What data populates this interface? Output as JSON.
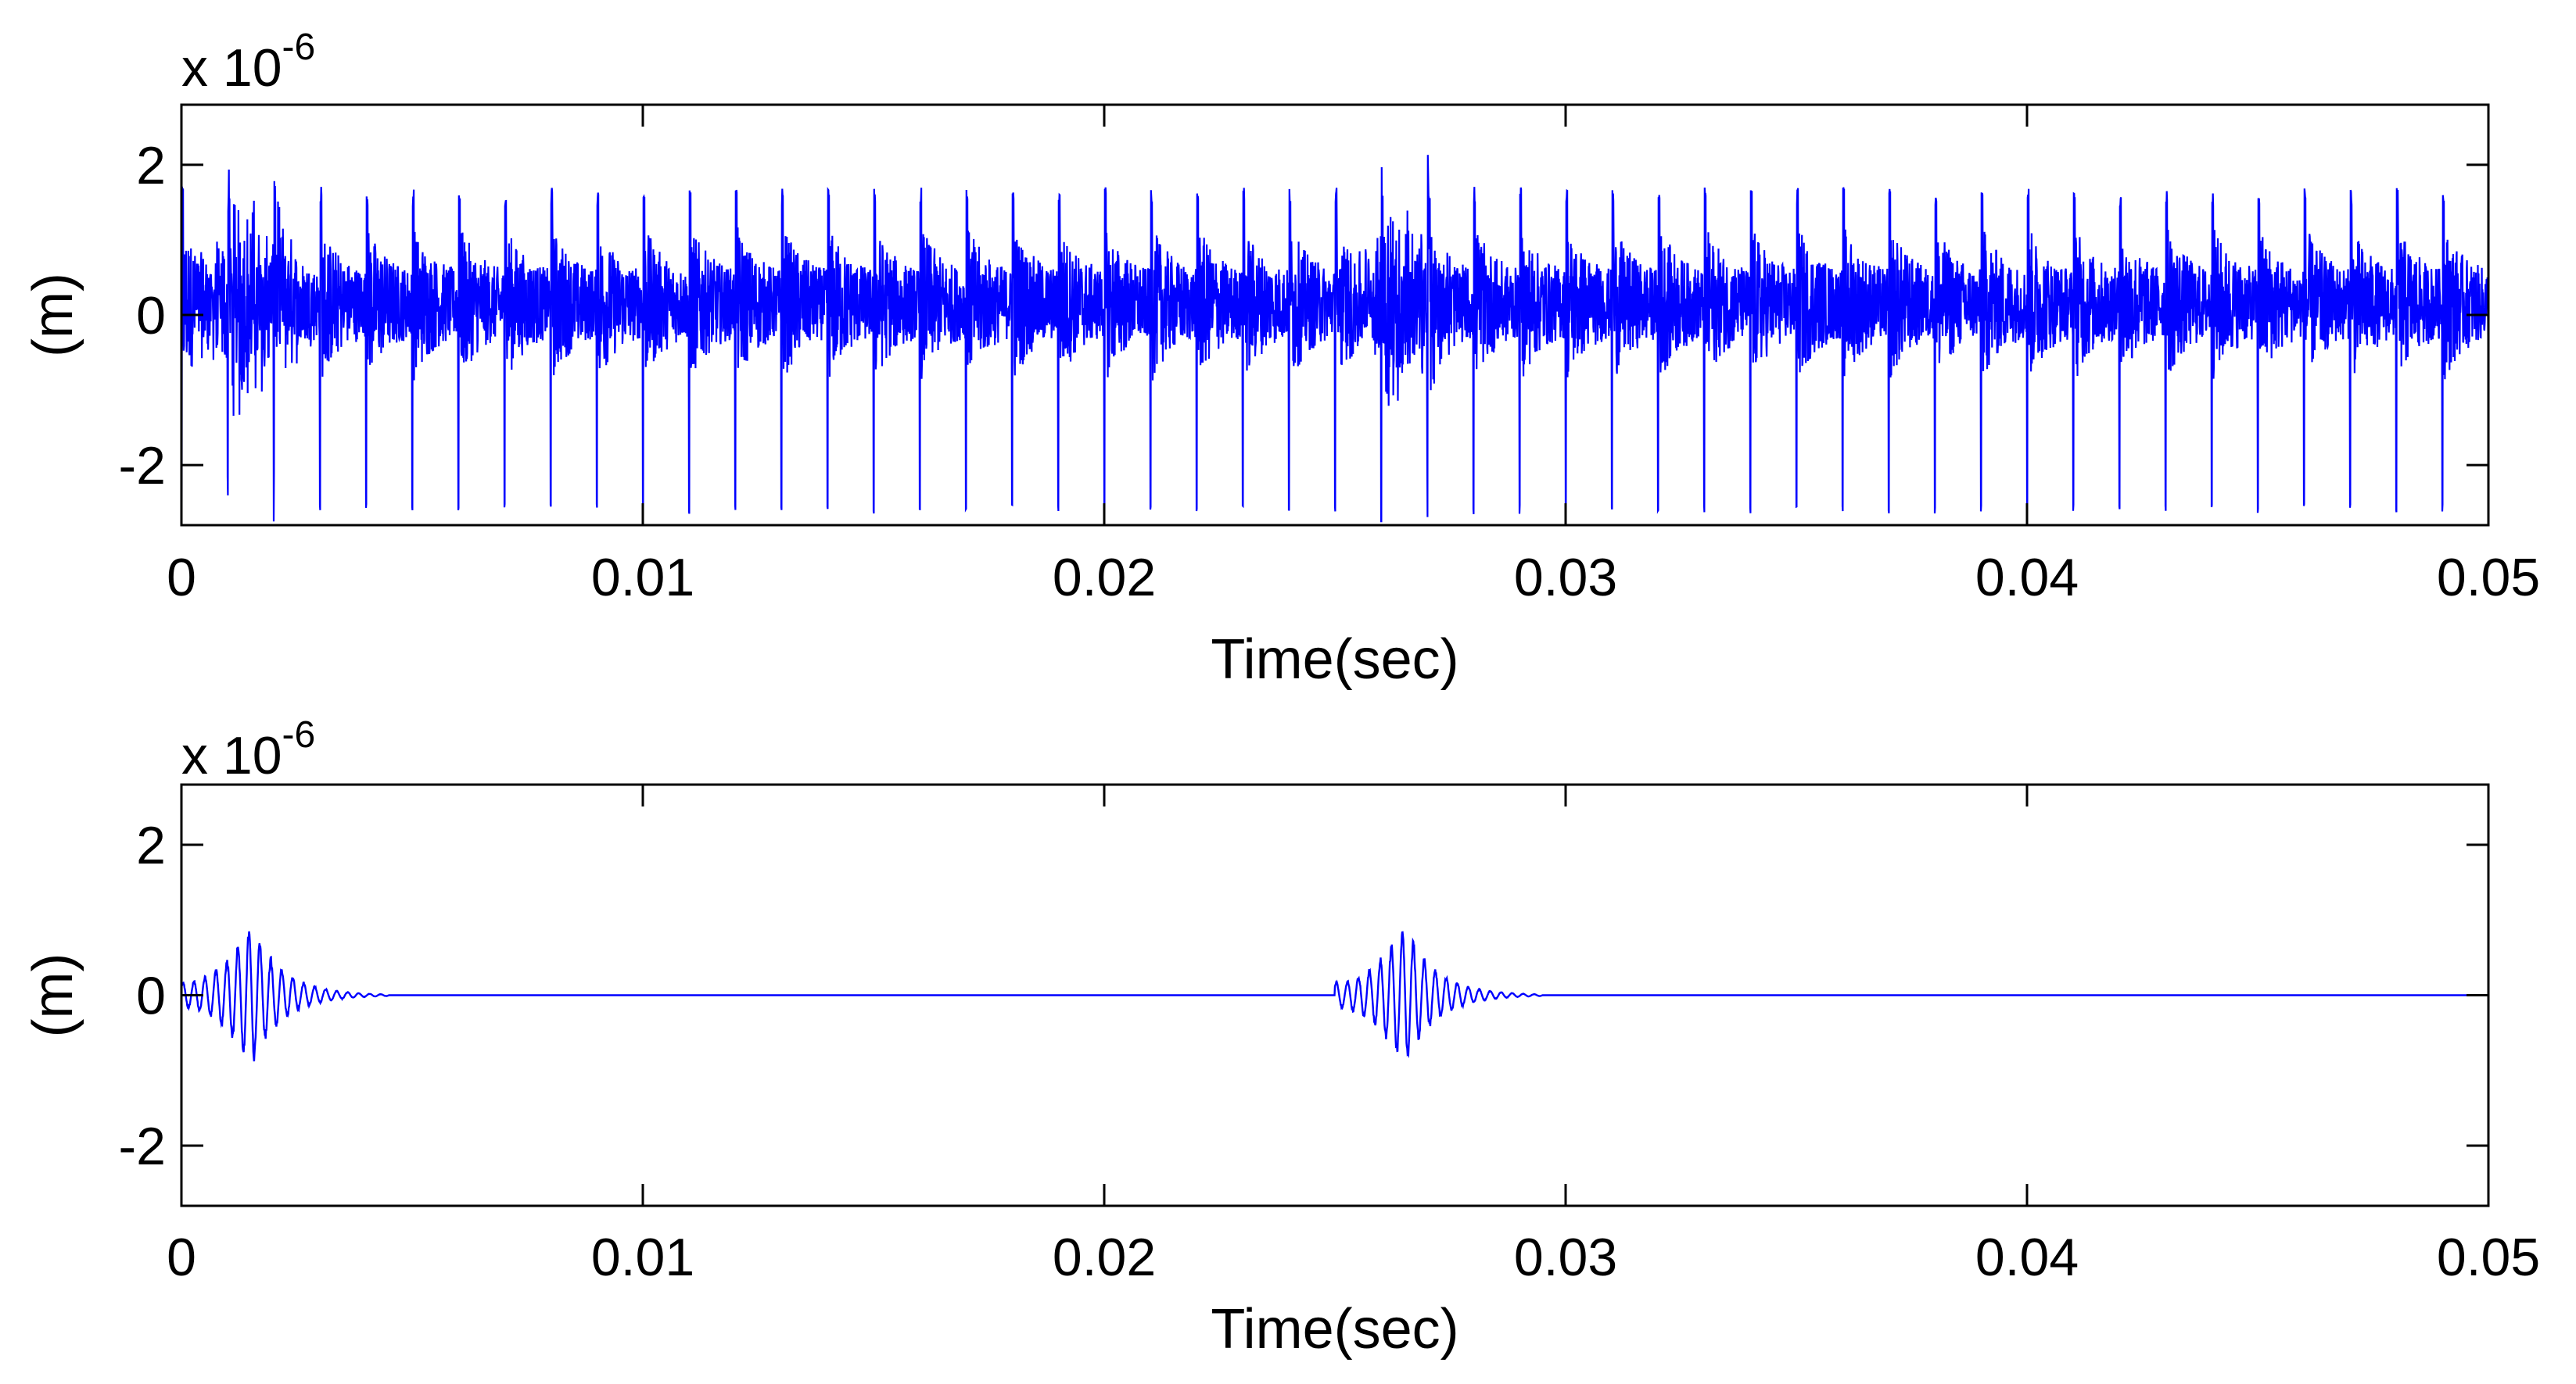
{
  "chart_data": [
    {
      "type": "line",
      "xlabel": "Time(sec)",
      "ylabel": "(m)",
      "xlim": [
        0,
        0.05
      ],
      "ylim": [
        -2.8,
        2.8
      ],
      "y_multiplier": "x 10",
      "y_multiplier_exponent": "-6",
      "x_ticks": [
        "0",
        "0.01",
        "0.02",
        "0.03",
        "0.04",
        "0.05"
      ],
      "y_ticks": [
        "-2",
        "0",
        "2"
      ],
      "grid": false,
      "line_color": "#0000ff",
      "signal": {
        "kind": "periodic_impulses_full_length",
        "impulse_period_sec": 0.001,
        "positive_peak_max": 2.0,
        "positive_peak_typical": 1.7,
        "negative_peak_typical": -2.65,
        "baseline_band": [
          -1.1,
          1.4
        ],
        "bursts_at_sec": [
          0.0015,
          0.0265
        ]
      }
    },
    {
      "type": "line",
      "xlabel": "Time(sec)",
      "ylabel": "(m)",
      "xlim": [
        0,
        0.05
      ],
      "ylim": [
        -2.8,
        2.8
      ],
      "y_multiplier": "x 10",
      "y_multiplier_exponent": "-6",
      "x_ticks": [
        "0",
        "0.01",
        "0.02",
        "0.03",
        "0.04",
        "0.05"
      ],
      "y_ticks": [
        "-2",
        "0",
        "2"
      ],
      "grid": false,
      "line_color": "#0000ff",
      "signal": {
        "kind": "decaying_bursts",
        "bursts": [
          {
            "start_sec": 0.0,
            "peak_sec": 0.0015,
            "end_sec": 0.0045,
            "peak_amplitude": 1.0
          },
          {
            "start_sec": 0.025,
            "peak_sec": 0.0265,
            "end_sec": 0.0295,
            "peak_amplitude": 1.0
          }
        ],
        "baseline": 0.0
      }
    }
  ]
}
